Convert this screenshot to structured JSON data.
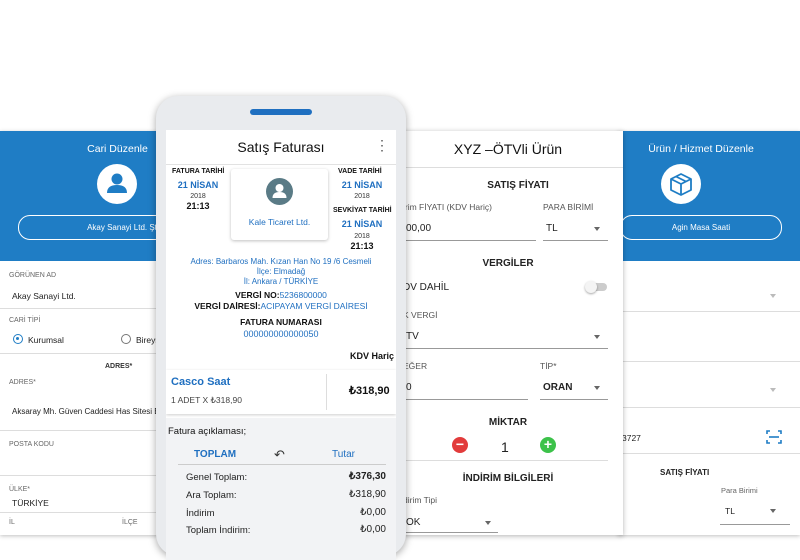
{
  "cari": {
    "title": "Cari Düzenle",
    "name_button": "Akay Sanayi Ltd. Şti.",
    "gorunen_ad_label": "GÖRÜNEN AD",
    "gorunen_ad_value": "Akay Sanayi Ltd.",
    "cari_tipi_label": "CARİ TİPİ",
    "option_kurumsal": "Kurumsal",
    "option_bireysel": "Bireys",
    "adres_heading": "ADRES*",
    "adres_label": "ADRES*",
    "adres_value": "Aksaray Mh. Güven Caddesi Has Sitesi B",
    "posta_kodu_label": "POSTA KODU",
    "ulke_label": "ÜLKE*",
    "ulke_value": "TÜRKİYE",
    "il_label": "İL",
    "ilce_label": "İLÇE"
  },
  "urun": {
    "title": "Ürün / Hizmet Düzenle",
    "name_button": "Agin Masa Saati",
    "code_value": "3727",
    "satis_fiyati_heading": "SATIŞ FİYATI",
    "para_birimi_label": "Para Birimi",
    "para_birimi_value": "TL"
  },
  "otv": {
    "title": "XYZ –ÖTVli Ürün",
    "satis_fiyati_heading": "SATIŞ FİYATI",
    "birim_fiyati_label": "irim FİYATI (KDV Hariç)",
    "birim_fiyati_value": "00,00",
    "para_birimi_label": "PARA BİRİMİ",
    "para_birimi_value": "TL",
    "vergiler_heading": "VERGİLER",
    "kdv_dahil_label": "DV DAHİL",
    "ek_vergi_label": "K VERGİ",
    "ek_vergi_value": "TV",
    "deger_label": "EĞER",
    "deger_value": "0",
    "tip_label": "TİP*",
    "tip_value": "ORAN",
    "miktar_heading": "MİKTAR",
    "miktar_value": "1",
    "minus": "−",
    "plus": "+",
    "indirim_heading": "İNDİRİM BİLGİLERİ",
    "indirim_tipi_label": "dirim Tipi",
    "indirim_tipi_value": "OK"
  },
  "fatura": {
    "title": "Satış Faturası",
    "menu": "⋮",
    "fatura_tarihi_label": "FATURA TARİHİ",
    "fatura_tarihi_day": "21 NİSAN",
    "fatura_tarihi_year": "2018",
    "fatura_tarihi_time": "21:13",
    "customer_name": "Kale Ticaret Ltd.",
    "vade_tarihi_label": "VADE TARİHİ",
    "vade_tarihi_day": "21 NİSAN",
    "vade_tarihi_year": "2018",
    "sevkiyat_tarihi_label": "SEVKİYAT TARİHİ",
    "sevkiyat_tarihi_day": "21 NİSAN",
    "sevkiyat_tarihi_year": "2018",
    "sevkiyat_tarihi_time": "21:13",
    "adres_line": "Adres: Barbaros Mah. Kızan Han No 19 /6 Cesmeli",
    "ilce_line": "İlçe: Elmadağ",
    "il_line": "İl: Ankara / TÜRKİYE",
    "vergi_no_label": "VERGİ NO:",
    "vergi_no_value": "5236800000",
    "vergi_dairesi_label": "VERGİ DAİRESİ:",
    "vergi_dairesi_value": "ACIPAYAM VERGİ DAİRESİ",
    "fatura_numarasi_label": "FATURA NUMARASI",
    "fatura_numarasi_value": "000000000000050",
    "kdv_haric": "KDV Hariç",
    "item_name": "Casco Saat",
    "item_qty": "1 ADET X ₺318,90",
    "item_total": "₺318,90",
    "aciklama": "Fatura açıklaması;",
    "toplam_tab": "TOPLAM",
    "undo_icon": "↶",
    "tutar_tab": "Tutar",
    "totals": [
      {
        "label": "Genel Toplam:",
        "value": "₺376,30",
        "bold": true
      },
      {
        "label": "Ara Toplam:",
        "value": "₺318,90",
        "bold": false
      },
      {
        "label": "İndirim",
        "value": "₺0,00",
        "bold": false
      },
      {
        "label": "Toplam İndirim:",
        "value": "₺0,00",
        "bold": false
      }
    ]
  },
  "colors": {
    "primary": "#1f7dc5",
    "link": "#1f6fc0",
    "minus_button": "#e23b3b",
    "plus_button": "#3cc24a"
  }
}
